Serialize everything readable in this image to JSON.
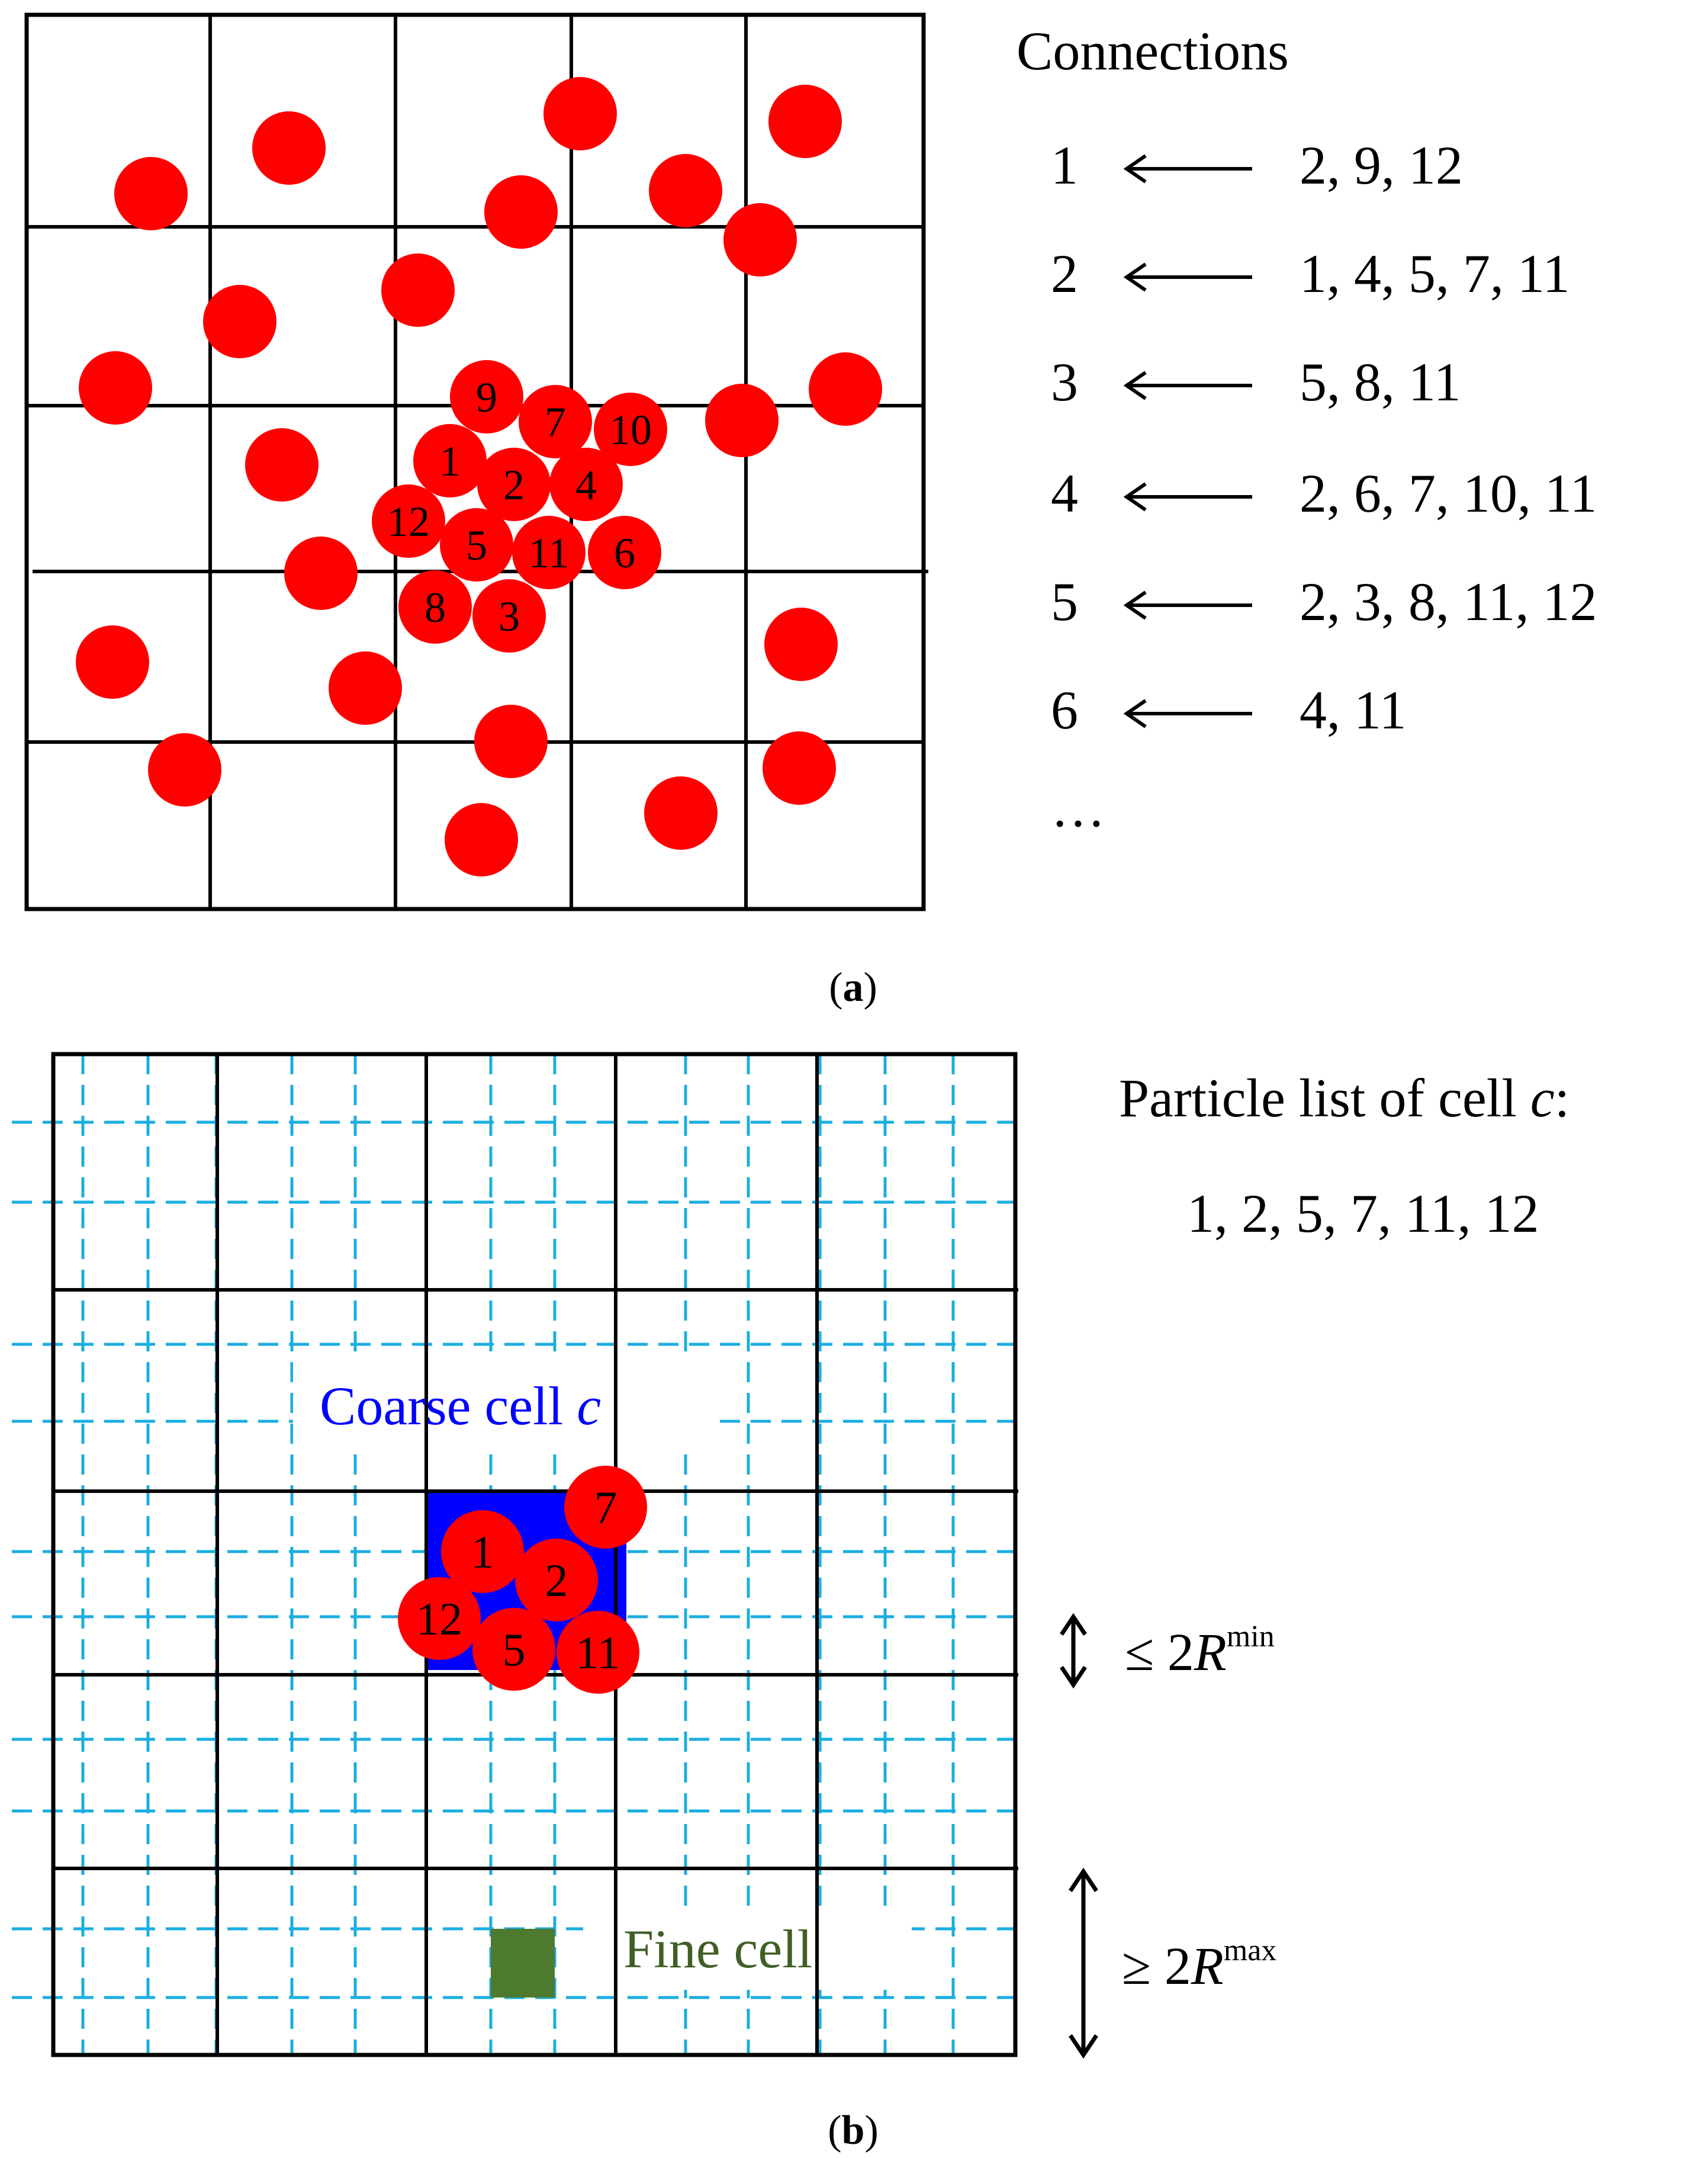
{
  "panel_a": {
    "caption": "(a)",
    "connections_title": "Connections",
    "connections": [
      {
        "id": "1",
        "neighbors": "2, 9, 12"
      },
      {
        "id": "2",
        "neighbors": "1, 4, 5, 7, 11"
      },
      {
        "id": "3",
        "neighbors": "5, 8, 11"
      },
      {
        "id": "4",
        "neighbors": "2, 6, 7, 10, 11"
      },
      {
        "id": "5",
        "neighbors": "2, 3, 8, 11, 12"
      },
      {
        "id": "6",
        "neighbors": "4, 11"
      }
    ],
    "ellipsis": "…",
    "labeled_particles": [
      {
        "label": "9"
      },
      {
        "label": "7"
      },
      {
        "label": "10"
      },
      {
        "label": "1"
      },
      {
        "label": "2"
      },
      {
        "label": "4"
      },
      {
        "label": "12"
      },
      {
        "label": "5"
      },
      {
        "label": "11"
      },
      {
        "label": "6"
      },
      {
        "label": "8"
      },
      {
        "label": "3"
      }
    ]
  },
  "panel_b": {
    "caption": "(b)",
    "particle_list_title": "Particle list of cell ",
    "particle_list_var": "c",
    "particle_list_colon": ":",
    "particle_list": "1, 2, 5, 7, 11, 12",
    "coarse_cell_label": "Coarse cell ",
    "coarse_cell_var": "c",
    "fine_cell_label": "Fine cell",
    "dim_min": {
      "relation": "≤ 2",
      "symbol": "R",
      "superscript": "min"
    },
    "dim_max": {
      "relation": "≥ 2",
      "symbol": "R",
      "superscript": "max"
    },
    "particles": [
      {
        "label": "7"
      },
      {
        "label": "1"
      },
      {
        "label": "2"
      },
      {
        "label": "12"
      },
      {
        "label": "5"
      },
      {
        "label": "11"
      }
    ]
  },
  "colors": {
    "particle": "#ff0000",
    "grid": "#000000",
    "fine_grid": "#1aaee0",
    "coarse_cell": "#0000ff",
    "fine_cell": "#4e7a30",
    "coarse_label": "#0000ff",
    "fine_label": "#3f5f25"
  }
}
